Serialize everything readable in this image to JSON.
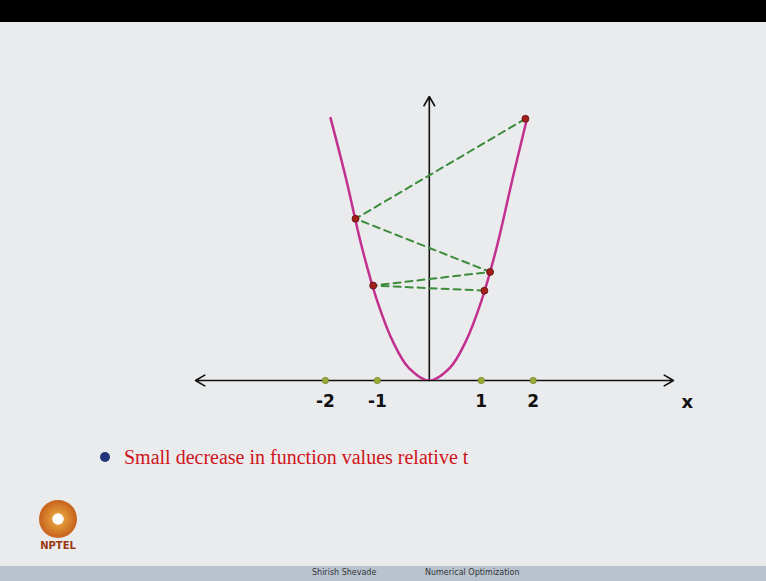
{
  "chart_data": {
    "type": "line",
    "x_label": "x",
    "annotations": [
      "Small decrease in function values relative t",
      "Shirish Shevade",
      "Numerical Optimization",
      "NPTEL"
    ],
    "series": [
      {
        "type": "line",
        "color": "#c2308f",
        "line_style": "solid",
        "x": [
          -1.9,
          -1.6,
          -1.3,
          -1,
          -0.7,
          -0.4,
          0,
          0.4,
          0.7,
          1,
          1.3,
          1.6,
          1.88
        ],
        "values": [
          3.65,
          2.8,
          1.86,
          1.1,
          0.54,
          0.18,
          0,
          0.18,
          0.54,
          1.1,
          1.86,
          2.8,
          3.64
        ]
      },
      {
        "type": "line",
        "color": "#3c8c3c",
        "line_style": "dashed",
        "marker": "circle",
        "x": [
          1.85,
          -1.42,
          1.17,
          -1.08,
          1.06
        ],
        "values": [
          3.64,
          2.25,
          1.51,
          1.32,
          1.25
        ]
      }
    ],
    "xlim": [
      -4.5,
      4.7
    ],
    "ylim": [
      0,
      3.95
    ],
    "xticks": [
      -2,
      -1,
      1,
      2
    ],
    "yticks": [],
    "tick_labels": "x",
    "grid": false
  }
}
